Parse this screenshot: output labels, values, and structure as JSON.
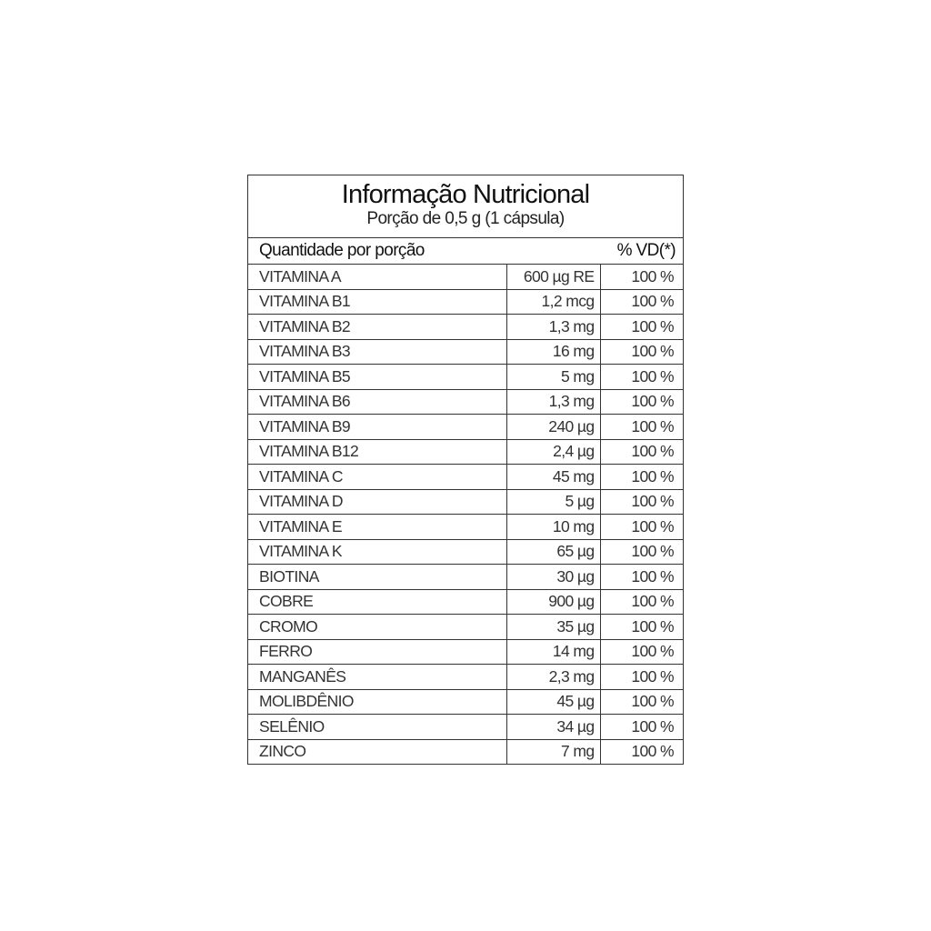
{
  "title": "Informação Nutricional",
  "subtitle": "Porção de 0,5 g (1 cápsula)",
  "header": {
    "left": "Quantidade por porção",
    "right": "% VD(*)"
  },
  "rows": [
    {
      "name": "VITAMINA A",
      "amount": "600 µg RE",
      "vd": "100 %"
    },
    {
      "name": "VITAMINA B1",
      "amount": "1,2 mcg",
      "vd": "100 %"
    },
    {
      "name": "VITAMINA B2",
      "amount": "1,3 mg",
      "vd": "100 %"
    },
    {
      "name": "VITAMINA B3",
      "amount": "16 mg",
      "vd": "100 %"
    },
    {
      "name": "VITAMINA B5",
      "amount": "5 mg",
      "vd": "100 %"
    },
    {
      "name": "VITAMINA B6",
      "amount": "1,3 mg",
      "vd": "100 %"
    },
    {
      "name": "VITAMINA B9",
      "amount": "240 µg",
      "vd": "100 %"
    },
    {
      "name": "VITAMINA B12",
      "amount": "2,4 µg",
      "vd": "100 %"
    },
    {
      "name": "VITAMINA C",
      "amount": "45 mg",
      "vd": "100 %"
    },
    {
      "name": "VITAMINA D",
      "amount": "5 µg",
      "vd": "100 %"
    },
    {
      "name": "VITAMINA E",
      "amount": "10 mg",
      "vd": "100 %"
    },
    {
      "name": "VITAMINA K",
      "amount": "65 µg",
      "vd": "100 %"
    },
    {
      "name": "BIOTINA",
      "amount": "30 µg",
      "vd": "100 %"
    },
    {
      "name": "COBRE",
      "amount": "900 µg",
      "vd": "100 %"
    },
    {
      "name": "CROMO",
      "amount": "35 µg",
      "vd": "100 %"
    },
    {
      "name": "FERRO",
      "amount": "14 mg",
      "vd": "100 %"
    },
    {
      "name": "MANGANÊS",
      "amount": "2,3 mg",
      "vd": "100 %"
    },
    {
      "name": "MOLIBDÊNIO",
      "amount": "45 µg",
      "vd": "100 %"
    },
    {
      "name": "SELÊNIO",
      "amount": "34 µg",
      "vd": "100 %"
    },
    {
      "name": "ZINCO",
      "amount": "7 mg",
      "vd": "100 %"
    }
  ]
}
